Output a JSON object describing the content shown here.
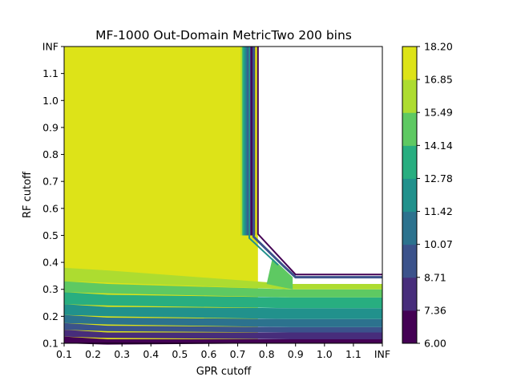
{
  "chart_data": {
    "type": "contourf",
    "title": "MF-1000 Out-Domain MetricTwo 200 bins",
    "xlabel": "GPR cutoff",
    "ylabel": "RF cutoff",
    "x_ticks": [
      "0.1",
      "0.2",
      "0.3",
      "0.4",
      "0.5",
      "0.6",
      "0.7",
      "0.8",
      "0.9",
      "1.0",
      "1.1",
      "INF"
    ],
    "y_ticks": [
      "0.1",
      "0.2",
      "0.3",
      "0.4",
      "0.5",
      "0.6",
      "0.7",
      "0.8",
      "0.9",
      "1.0",
      "1.1",
      "INF"
    ],
    "colorbar": {
      "levels": [
        6.0,
        7.36,
        8.71,
        10.07,
        11.42,
        12.78,
        14.14,
        15.49,
        16.85,
        18.2
      ],
      "labels": [
        "6.00",
        "7.36",
        "8.71",
        "10.07",
        "11.42",
        "12.78",
        "14.14",
        "15.49",
        "16.85",
        "18.20"
      ],
      "colors": [
        "#440154",
        "#472d7b",
        "#3b528b",
        "#2c728e",
        "#21918c",
        "#28ae80",
        "#5ec962",
        "#addc30",
        "#dde318"
      ]
    },
    "missing_region": "upper-right (no data)",
    "bands": [
      {
        "band": 0,
        "left": [
          0.1,
          0.125
        ],
        "right_lo": [
          0.1,
          0.115
        ]
      },
      {
        "band": 1,
        "left": [
          0.125,
          0.15
        ],
        "right_lo": [
          0.115,
          0.14
        ]
      },
      {
        "band": 2,
        "left": [
          0.15,
          0.175
        ],
        "right_lo": [
          0.14,
          0.16
        ]
      },
      {
        "band": 3,
        "left": [
          0.175,
          0.205
        ],
        "right_lo": [
          0.16,
          0.19
        ]
      },
      {
        "band": 4,
        "left": [
          0.205,
          0.245
        ],
        "right_lo": [
          0.19,
          0.23
        ]
      },
      {
        "band": 5,
        "left": [
          0.245,
          0.29
        ],
        "right_lo": [
          0.23,
          0.27
        ]
      },
      {
        "band": 6,
        "left": [
          0.29,
          0.33
        ],
        "right_lo": [
          0.27,
          0.3
        ]
      },
      {
        "band": 7,
        "left": [
          0.33,
          0.38
        ],
        "right_lo": [
          0.3,
          0.32
        ]
      }
    ]
  }
}
